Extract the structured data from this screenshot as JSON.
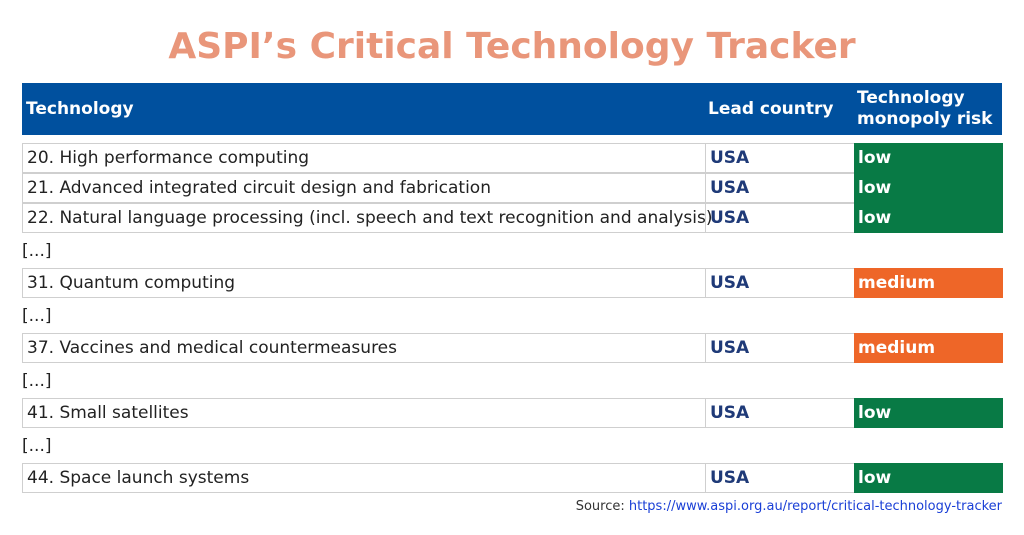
{
  "colors": {
    "title": "#e9967a",
    "header_bg": "#00509e",
    "lead_text": "#1f3a78",
    "risk_low": "#087a45",
    "risk_medium": "#ee6628"
  },
  "title": "ASPI’s Critical Technology Tracker",
  "header": {
    "technology": "Technology",
    "lead_country": "Lead country",
    "monopoly_risk": "Technology monopoly risk"
  },
  "chart_data": {
    "type": "table",
    "title": "ASPI’s Critical Technology Tracker",
    "columns": [
      "Technology",
      "Lead country",
      "Technology monopoly risk"
    ],
    "rows": [
      {
        "kind": "row",
        "technology": "20. High performance computing",
        "lead": "USA",
        "risk": "low"
      },
      {
        "kind": "row",
        "technology": "21. Advanced integrated circuit design and fabrication",
        "lead": "USA",
        "risk": "low"
      },
      {
        "kind": "row",
        "technology": "22. Natural language processing (incl. speech and text recognition and analysis)",
        "lead": "USA",
        "risk": "low"
      },
      {
        "kind": "gap",
        "text": "[...]"
      },
      {
        "kind": "row",
        "technology": "31. Quantum computing",
        "lead": "USA",
        "risk": "medium"
      },
      {
        "kind": "gap",
        "text": "[...]"
      },
      {
        "kind": "row",
        "technology": "37. Vaccines and medical countermeasures",
        "lead": "USA",
        "risk": "medium"
      },
      {
        "kind": "gap",
        "text": "[...]"
      },
      {
        "kind": "row",
        "technology": "41. Small satellites",
        "lead": "USA",
        "risk": "low"
      },
      {
        "kind": "gap",
        "text": "[...]"
      },
      {
        "kind": "row",
        "technology": "44. Space launch systems",
        "lead": "USA",
        "risk": "low"
      }
    ]
  },
  "source": {
    "label": "Source:",
    "link": "https://www.aspi.org.au/report/critical-technology-tracker"
  }
}
